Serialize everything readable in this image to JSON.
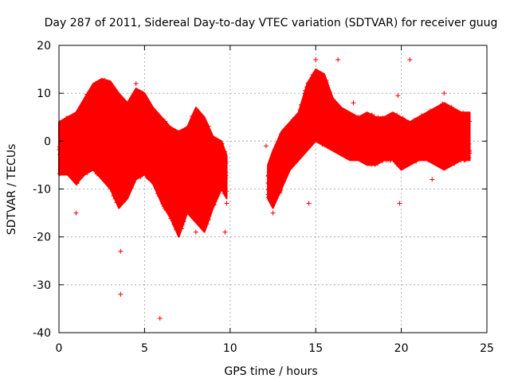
{
  "chart_data": {
    "type": "scatter",
    "title": "Day 287 of 2011, Sidereal Day-to-day VTEC variation (SDTVAR) for receiver guug",
    "xlabel": "GPS time / hours",
    "ylabel": "SDTVAR / TECUs",
    "xlim": [
      0,
      25
    ],
    "ylim": [
      -40,
      20
    ],
    "xticks": [
      0,
      5,
      10,
      15,
      20,
      25
    ],
    "yticks": [
      -40,
      -30,
      -20,
      -10,
      0,
      10,
      20
    ],
    "grid": true,
    "marker": "+",
    "color": "#ff0000",
    "series": [
      {
        "name": "SDTVAR",
        "envelope": {
          "description": "dense point cloud: lower/upper bounds of the scatter vs time (hours)",
          "x": [
            0.0,
            0.5,
            1.0,
            1.5,
            2.0,
            2.5,
            3.0,
            3.5,
            4.0,
            4.5,
            5.0,
            5.5,
            6.0,
            6.5,
            7.0,
            7.5,
            8.0,
            8.5,
            9.0,
            9.5,
            9.8
          ],
          "upper": [
            4,
            5,
            6,
            9,
            12,
            13,
            12.5,
            10,
            8,
            11,
            10,
            7,
            5,
            3,
            2,
            3,
            7,
            5,
            1,
            0,
            -3
          ],
          "lower": [
            -7,
            -7,
            -9,
            -7,
            -6,
            -8,
            -10,
            -14,
            -12,
            -8,
            -7,
            -9,
            -13,
            -16,
            -20,
            -15,
            -17,
            -19,
            -14,
            -10,
            -12
          ],
          "x2": [
            12.2,
            12.5,
            13.0,
            13.5,
            14.0,
            14.5,
            15.0,
            15.5,
            16.0,
            16.5,
            17.0,
            17.5,
            18.0,
            18.5,
            19.0,
            19.5,
            20.0,
            20.5,
            21.0,
            21.5,
            22.0,
            22.5,
            23.0,
            23.5,
            24.0
          ],
          "upper2": [
            -5,
            -2,
            2,
            4,
            6,
            12,
            15,
            14,
            9,
            7,
            6,
            5,
            6,
            5,
            5,
            6,
            5,
            4,
            5,
            6,
            7,
            8,
            7,
            6,
            6
          ],
          "lower2": [
            -12,
            -14,
            -10,
            -6,
            -4,
            -2,
            0,
            -1,
            -2,
            -3,
            -4,
            -4,
            -5,
            -5,
            -4,
            -4,
            -6,
            -5,
            -4,
            -4,
            -5,
            -6,
            -5,
            -4,
            -4
          ]
        },
        "outliers": [
          {
            "x": 3.6,
            "y": -32
          },
          {
            "x": 5.9,
            "y": -37
          },
          {
            "x": 3.6,
            "y": -23
          },
          {
            "x": 4.5,
            "y": 12
          },
          {
            "x": 4.5,
            "y": -6.5
          },
          {
            "x": 1.0,
            "y": -15
          },
          {
            "x": 8.0,
            "y": -19
          },
          {
            "x": 9.7,
            "y": -19
          },
          {
            "x": 9.8,
            "y": -13
          },
          {
            "x": 14.6,
            "y": -13
          },
          {
            "x": 16.3,
            "y": 17
          },
          {
            "x": 15.0,
            "y": 17
          },
          {
            "x": 20.5,
            "y": 17
          },
          {
            "x": 19.9,
            "y": -13
          },
          {
            "x": 19.8,
            "y": 9.5
          },
          {
            "x": 21.8,
            "y": -8
          },
          {
            "x": 22.5,
            "y": 10
          },
          {
            "x": 12.5,
            "y": -15
          },
          {
            "x": 12.1,
            "y": -1
          },
          {
            "x": 18.0,
            "y": 1
          },
          {
            "x": 17.2,
            "y": 8
          }
        ]
      }
    ]
  }
}
